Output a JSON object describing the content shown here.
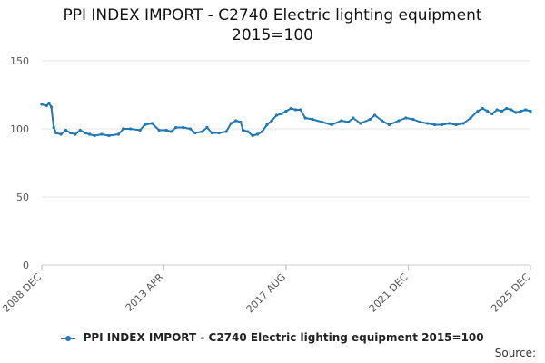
{
  "chart_data": {
    "type": "line",
    "title": "PPI INDEX IMPORT - C2740 Electric lighting equipment",
    "subtitle": "2015=100",
    "xlabel": "",
    "ylabel": "",
    "x_tick_labels": [
      "2008 DEC",
      "2013 APR",
      "2017 AUG",
      "2021 DEC",
      "2025 DEC"
    ],
    "y_ticks": [
      0,
      50,
      100,
      150
    ],
    "ylim": [
      0,
      150
    ],
    "grid": true,
    "legend_position": "bottom",
    "series": [
      {
        "name": "PPI INDEX IMPORT - C2740 Electric lighting equipment 2015=100",
        "color": "#1f77b4",
        "points": [
          [
            "2008-12",
            118
          ],
          [
            "2009-02",
            117
          ],
          [
            "2009-03",
            119
          ],
          [
            "2009-04",
            116
          ],
          [
            "2009-05",
            101
          ],
          [
            "2009-06",
            97
          ],
          [
            "2009-08",
            96
          ],
          [
            "2009-10",
            99
          ],
          [
            "2009-12",
            97
          ],
          [
            "2010-02",
            96
          ],
          [
            "2010-04",
            99
          ],
          [
            "2010-06",
            97
          ],
          [
            "2010-08",
            96
          ],
          [
            "2010-10",
            95
          ],
          [
            "2011-01",
            96
          ],
          [
            "2011-04",
            95
          ],
          [
            "2011-08",
            96
          ],
          [
            "2011-10",
            100
          ],
          [
            "2012-01",
            100
          ],
          [
            "2012-05",
            99
          ],
          [
            "2012-07",
            103
          ],
          [
            "2012-10",
            104
          ],
          [
            "2013-01",
            99
          ],
          [
            "2013-04",
            99
          ],
          [
            "2013-06",
            98
          ],
          [
            "2013-08",
            101
          ],
          [
            "2013-11",
            101
          ],
          [
            "2014-02",
            100
          ],
          [
            "2014-04",
            97
          ],
          [
            "2014-07",
            98
          ],
          [
            "2014-09",
            101
          ],
          [
            "2014-11",
            97
          ],
          [
            "2015-02",
            97
          ],
          [
            "2015-05",
            98
          ],
          [
            "2015-07",
            104
          ],
          [
            "2015-09",
            106
          ],
          [
            "2015-11",
            105
          ],
          [
            "2015-12",
            99
          ],
          [
            "2016-02",
            98
          ],
          [
            "2016-04",
            95
          ],
          [
            "2016-06",
            96
          ],
          [
            "2016-08",
            98
          ],
          [
            "2016-10",
            103
          ],
          [
            "2016-12",
            106
          ],
          [
            "2017-02",
            110
          ],
          [
            "2017-04",
            111
          ],
          [
            "2017-06",
            113
          ],
          [
            "2017-08",
            115
          ],
          [
            "2017-10",
            114
          ],
          [
            "2017-12",
            114
          ],
          [
            "2018-02",
            108
          ],
          [
            "2018-05",
            107
          ],
          [
            "2018-09",
            105
          ],
          [
            "2019-01",
            103
          ],
          [
            "2019-05",
            106
          ],
          [
            "2019-08",
            105
          ],
          [
            "2019-10",
            108
          ],
          [
            "2020-01",
            104
          ],
          [
            "2020-05",
            107
          ],
          [
            "2020-07",
            110
          ],
          [
            "2020-10",
            106
          ],
          [
            "2021-01",
            103
          ],
          [
            "2021-05",
            106
          ],
          [
            "2021-08",
            108
          ],
          [
            "2021-11",
            107
          ],
          [
            "2022-02",
            105
          ],
          [
            "2022-05",
            104
          ],
          [
            "2022-08",
            103
          ],
          [
            "2022-11",
            103
          ],
          [
            "2023-02",
            104
          ],
          [
            "2023-05",
            103
          ],
          [
            "2023-08",
            104
          ],
          [
            "2023-11",
            108
          ],
          [
            "2024-02",
            113
          ],
          [
            "2024-04",
            115
          ],
          [
            "2024-06",
            113
          ],
          [
            "2024-08",
            111
          ],
          [
            "2024-10",
            114
          ],
          [
            "2024-12",
            113
          ],
          [
            "2025-02",
            115
          ],
          [
            "2025-04",
            114
          ],
          [
            "2025-06",
            112
          ],
          [
            "2025-08",
            113
          ],
          [
            "2025-10",
            114
          ],
          [
            "2025-12",
            113
          ]
        ]
      }
    ]
  },
  "source_label": "Source:"
}
